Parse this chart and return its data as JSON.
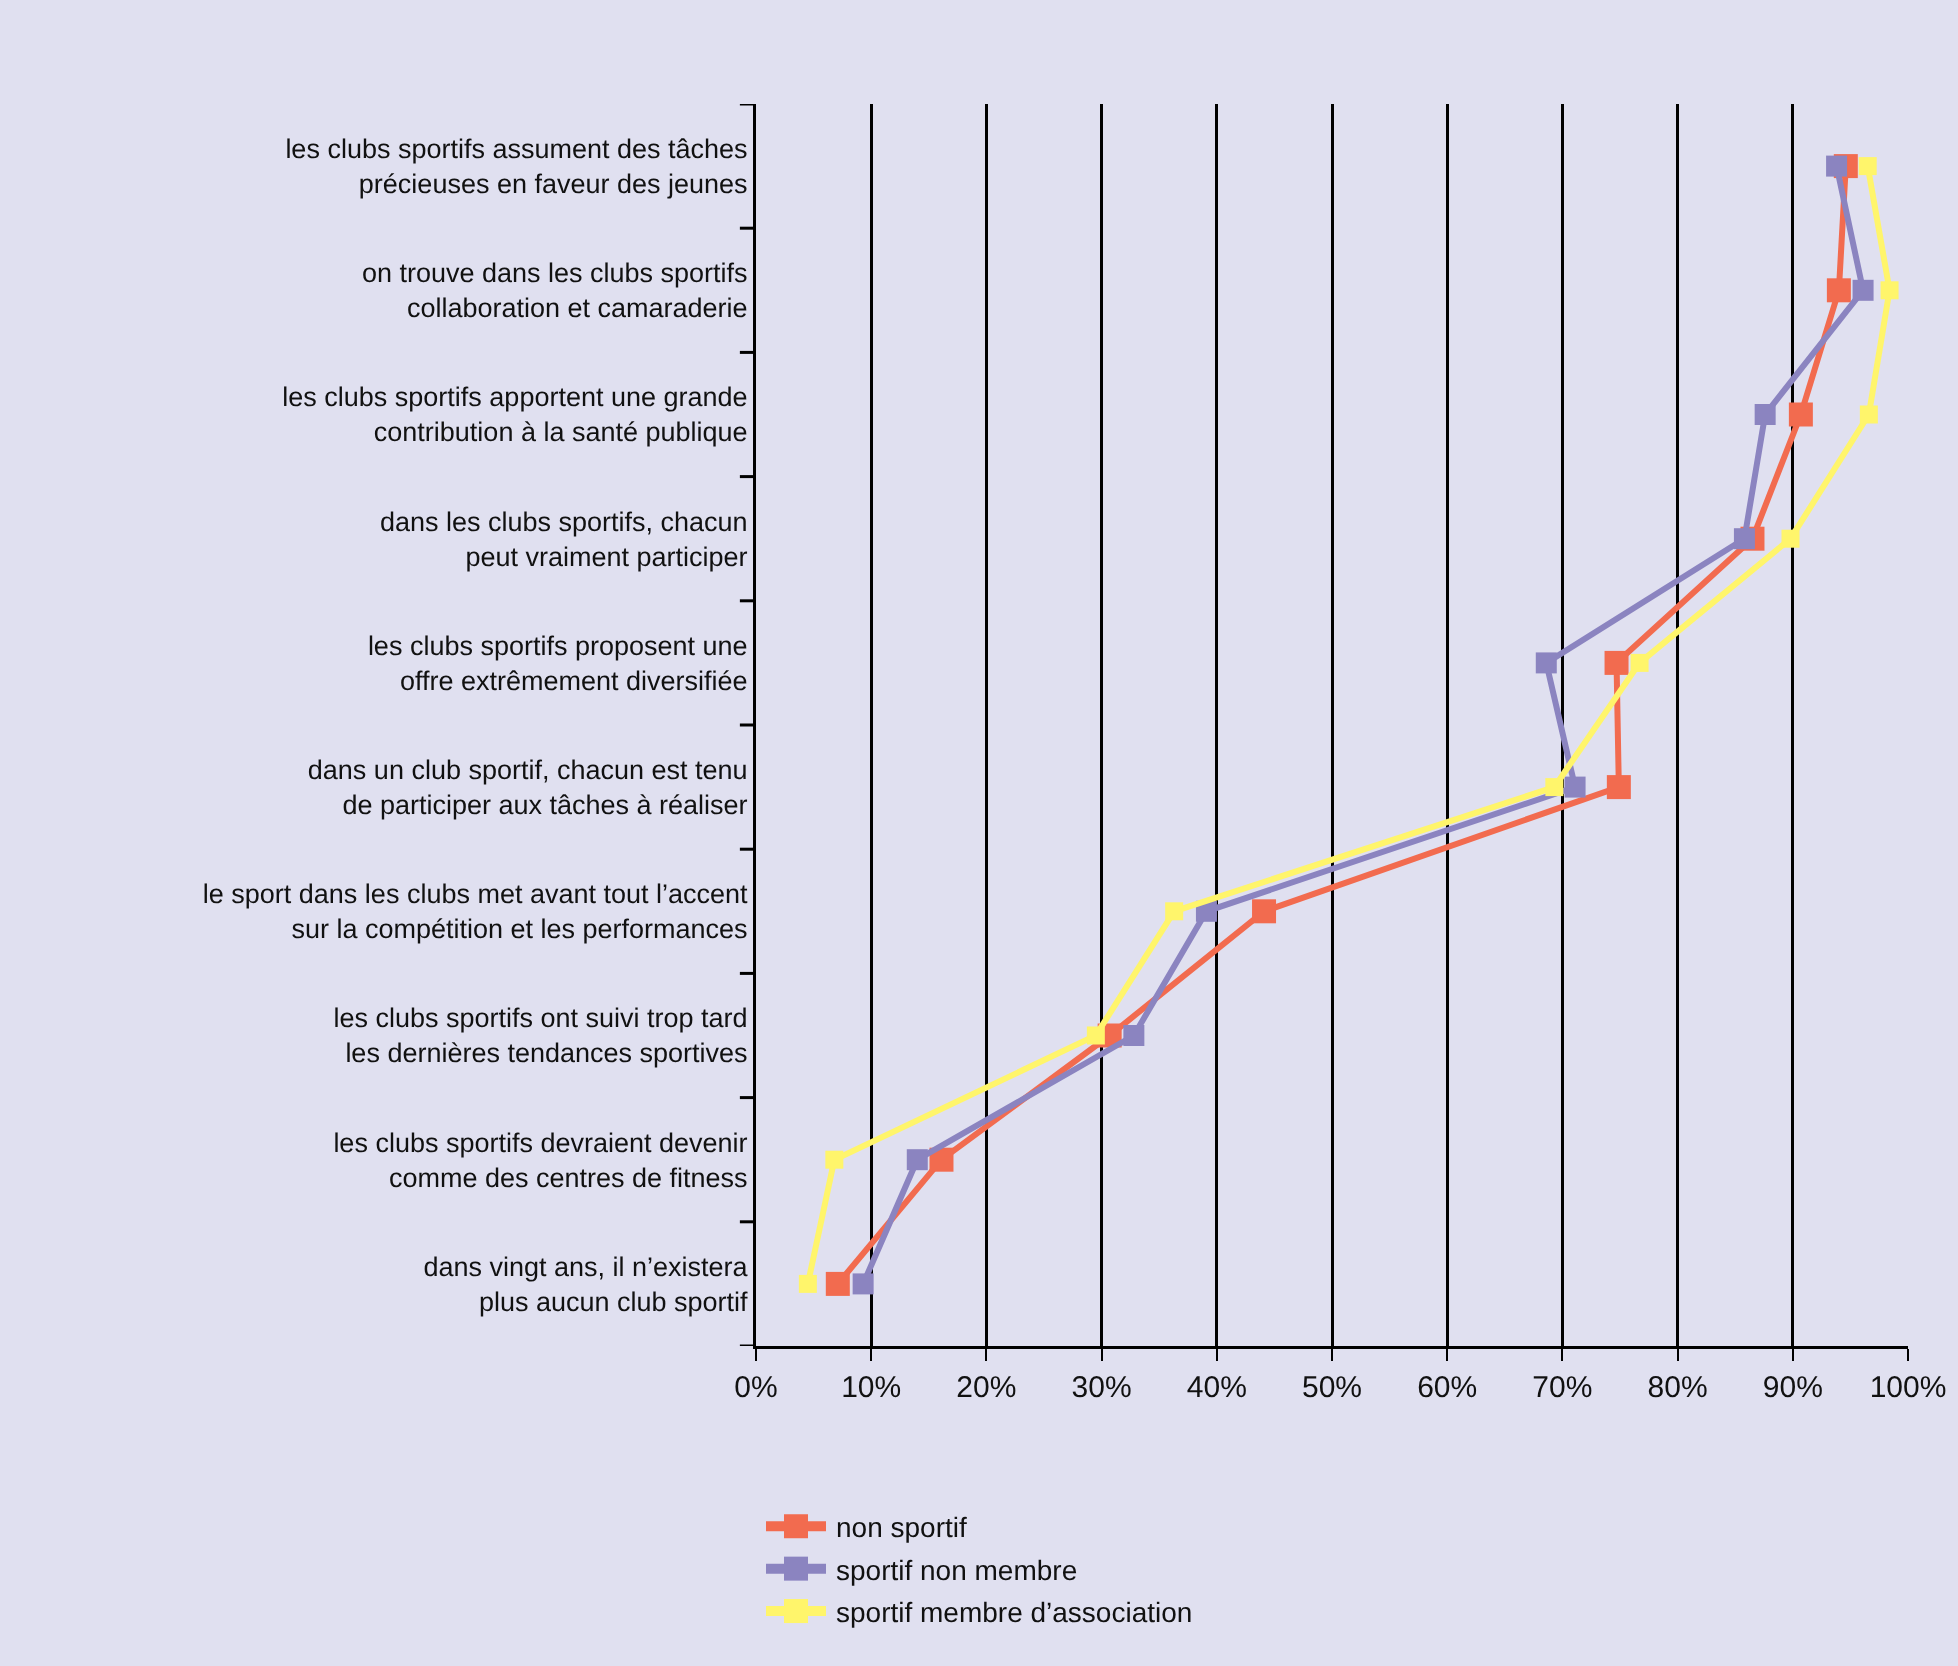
{
  "chart_data": {
    "type": "line",
    "orientation": "horizontal",
    "categories": [
      "les clubs sportifs assument des tâches précieuses en faveur des jeunes",
      "on trouve dans les clubs sportifs collaboration et camaraderie",
      "les clubs sportifs apportent une grande contribution à la santé publique",
      "dans les clubs sportifs, chacun peut vraiment participer",
      "les clubs sportifs proposent une offre extrêmement diversifiée",
      "dans un club sportif, chacun est tenu de participer aux tâches à réaliser",
      "le sport dans les clubs met avant tout l’accent sur la compétition et les performances",
      "les clubs sportifs ont suivi trop tard les dernières tendances sportives",
      "les clubs sportifs devraient devenir comme des centres de fitness",
      "dans vingt ans, il n’existera plus aucun club sportif"
    ],
    "series": [
      {
        "name": "non sportif",
        "color": "#f26b4f",
        "values": [
          94.6,
          94.0,
          90.7,
          86.5,
          74.7,
          74.9,
          44.1,
          30.7,
          16.1,
          7.1
        ]
      },
      {
        "name": "sportif non membre",
        "color": "#8b84c0",
        "values": [
          93.8,
          96.1,
          87.6,
          85.8,
          68.6,
          71.1,
          39.1,
          32.8,
          14.0,
          9.3
        ]
      },
      {
        "name": "sportif membre d’association",
        "color": "#fff56b",
        "values": [
          96.5,
          98.4,
          96.6,
          89.8,
          76.7,
          69.3,
          36.3,
          29.5,
          6.8,
          4.5
        ]
      }
    ],
    "xlim": [
      0,
      100
    ],
    "xticks": [
      {
        "value": 0,
        "label": "0%"
      },
      {
        "value": 10,
        "label": "10%"
      },
      {
        "value": 20,
        "label": "20%"
      },
      {
        "value": 30,
        "label": "30%"
      },
      {
        "value": 40,
        "label": "40%"
      },
      {
        "value": 50,
        "label": "50%"
      },
      {
        "value": 60,
        "label": "60%"
      },
      {
        "value": 70,
        "label": "70%"
      },
      {
        "value": 80,
        "label": "80%"
      },
      {
        "value": 90,
        "label": "90%"
      },
      {
        "value": 100,
        "label": "100%"
      }
    ],
    "grid": "x",
    "legend": "bottom",
    "marker": "square",
    "line_style": "solid"
  }
}
